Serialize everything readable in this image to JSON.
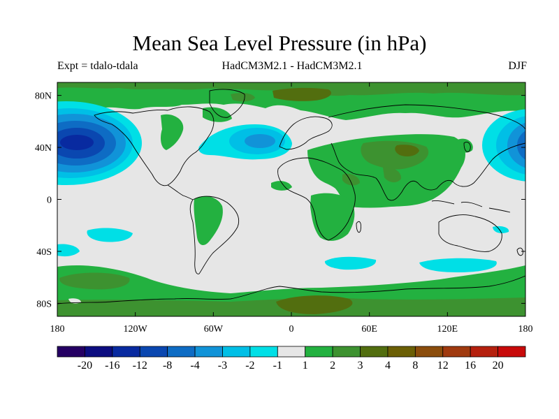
{
  "title": "Mean Sea Level Pressure (in hPa)",
  "subtitle_left": "Expt = tdalo-tdala",
  "subtitle_center": "HadCM3M2.1 - HadCM3M2.1",
  "subtitle_right": "DJF",
  "colors": {
    "ocean_neutral": "#e6e6e6",
    "land_outline": "#000000",
    "bins": [
      "#250063",
      "#0c0d80",
      "#082aa0",
      "#0a47b0",
      "#0e6cc4",
      "#1193d8",
      "#00bfe6",
      "#00dfe6",
      "#e6e6e6",
      "#23b140",
      "#3d9230",
      "#526e0f",
      "#6b5f05",
      "#8b4d0c",
      "#a03a0f",
      "#b5200e",
      "#c80a0a"
    ]
  },
  "map": {
    "lat_ticks": [
      "80N",
      "40N",
      "0",
      "40S",
      "80S"
    ],
    "lon_ticks": [
      "180",
      "120W",
      "60W",
      "0",
      "60E",
      "120E",
      "180"
    ]
  },
  "colorbar": {
    "labels": [
      "-20",
      "-16",
      "-12",
      "-8",
      "-4",
      "-3",
      "-2",
      "-1",
      "1",
      "2",
      "3",
      "4",
      "8",
      "12",
      "16",
      "20"
    ]
  }
}
